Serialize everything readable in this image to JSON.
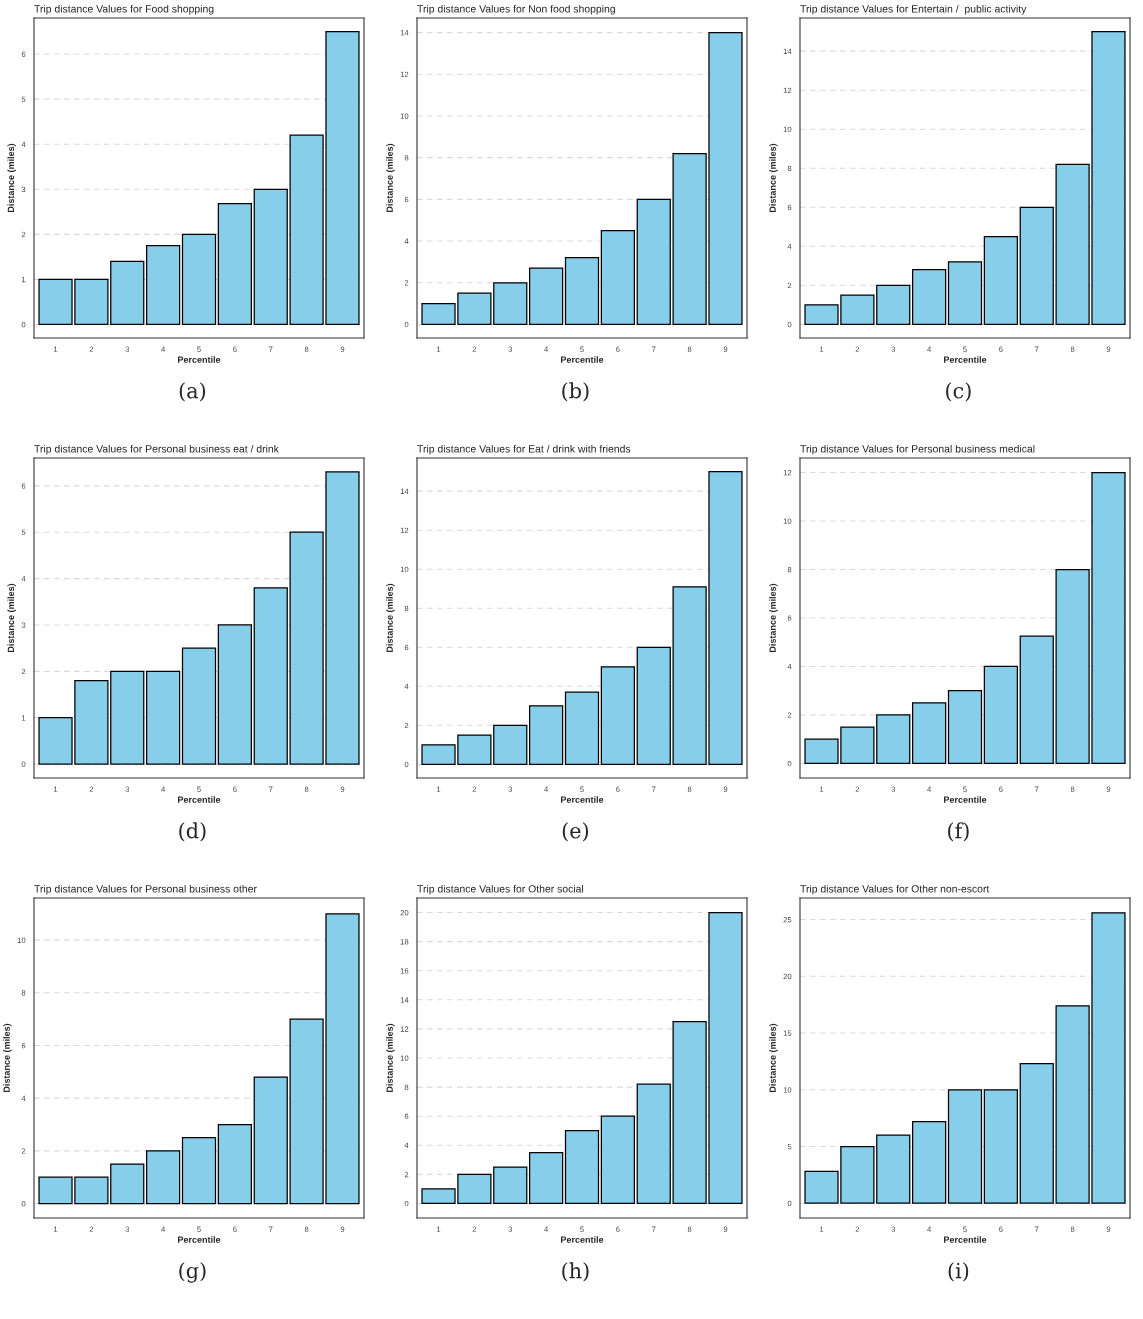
{
  "chart_data": [
    {
      "type": "bar",
      "title": "Trip distance Values for Food shopping",
      "xlabel": "Percentile",
      "ylabel": "Distance (miles)",
      "categories": [
        "1",
        "2",
        "3",
        "4",
        "5",
        "6",
        "7",
        "8",
        "9"
      ],
      "values": [
        1,
        1,
        1.4,
        1.75,
        2,
        2.68,
        3,
        4.2,
        6.5
      ],
      "color": "#87ceeb",
      "ylim": [
        -0.3,
        6.8
      ],
      "yticks": [
        0,
        1,
        2,
        3,
        4,
        5,
        6
      ],
      "grid": "y",
      "annotations": [
        "(a)"
      ]
    },
    {
      "type": "bar",
      "title": "Trip distance Values for Non food shopping",
      "xlabel": "Percentile",
      "ylabel": "Distance (miles)",
      "categories": [
        "1",
        "2",
        "3",
        "4",
        "5",
        "6",
        "7",
        "8",
        "9"
      ],
      "values": [
        1,
        1.5,
        2,
        2.7,
        3.2,
        4.5,
        6,
        8.2,
        14
      ],
      "color": "#87ceeb",
      "ylim": [
        -0.65,
        14.7
      ],
      "yticks": [
        0,
        2,
        4,
        6,
        8,
        10,
        12,
        14
      ],
      "grid": "y",
      "annotations": [
        "(b)"
      ]
    },
    {
      "type": "bar",
      "title": "Trip distance Values for Entertain /  public activity",
      "xlabel": "Percentile",
      "ylabel": "Distance (miles)",
      "categories": [
        "1",
        "2",
        "3",
        "4",
        "5",
        "6",
        "7",
        "8",
        "9"
      ],
      "values": [
        1,
        1.5,
        2,
        2.8,
        3.2,
        4.5,
        6,
        8.2,
        15
      ],
      "color": "#87ceeb",
      "ylim": [
        -0.7,
        15.7
      ],
      "yticks": [
        0,
        2,
        4,
        6,
        8,
        10,
        12,
        14
      ],
      "grid": "y",
      "annotations": [
        "(c)"
      ]
    },
    {
      "type": "bar",
      "title": "Trip distance Values for Personal business eat / drink",
      "xlabel": "Percentile",
      "ylabel": "Distance (miles)",
      "categories": [
        "1",
        "2",
        "3",
        "4",
        "5",
        "6",
        "7",
        "8",
        "9"
      ],
      "values": [
        1,
        1.8,
        2,
        2,
        2.5,
        3,
        3.8,
        5,
        6.3
      ],
      "color": "#87ceeb",
      "ylim": [
        -0.3,
        6.6
      ],
      "yticks": [
        0,
        1,
        2,
        3,
        4,
        5,
        6
      ],
      "grid": "y",
      "annotations": [
        "(d)"
      ]
    },
    {
      "type": "bar",
      "title": "Trip distance Values for Eat / drink with friends",
      "xlabel": "Percentile",
      "ylabel": "Distance (miles)",
      "categories": [
        "1",
        "2",
        "3",
        "4",
        "5",
        "6",
        "7",
        "8",
        "9"
      ],
      "values": [
        1,
        1.5,
        2,
        3,
        3.7,
        5,
        6,
        9.1,
        15
      ],
      "color": "#87ceeb",
      "ylim": [
        -0.7,
        15.7
      ],
      "yticks": [
        0,
        2,
        4,
        6,
        8,
        10,
        12,
        14
      ],
      "grid": "y",
      "annotations": [
        "(e)"
      ]
    },
    {
      "type": "bar",
      "title": "Trip distance Values for Personal business medical",
      "xlabel": "Percentile",
      "ylabel": "Distance (miles)",
      "categories": [
        "1",
        "2",
        "3",
        "4",
        "5",
        "6",
        "7",
        "8",
        "9"
      ],
      "values": [
        1,
        1.5,
        2,
        2.5,
        3,
        4,
        5.25,
        8,
        12
      ],
      "color": "#87ceeb",
      "ylim": [
        -0.6,
        12.6
      ],
      "yticks": [
        0,
        2,
        4,
        6,
        8,
        10,
        12
      ],
      "grid": "y",
      "annotations": [
        "(f)"
      ]
    },
    {
      "type": "bar",
      "title": "Trip distance Values for Personal business other",
      "xlabel": "Percentile",
      "ylabel": "Distance (miles)",
      "categories": [
        "1",
        "2",
        "3",
        "4",
        "5",
        "6",
        "7",
        "8",
        "9"
      ],
      "values": [
        1,
        1,
        1.5,
        2,
        2.5,
        3,
        4.8,
        7,
        11
      ],
      "color": "#87ceeb",
      "ylim": [
        -0.55,
        11.6
      ],
      "yticks": [
        0,
        2,
        4,
        6,
        8,
        10
      ],
      "grid": "y",
      "annotations": [
        "(g)"
      ]
    },
    {
      "type": "bar",
      "title": "Trip distance Values for Other social",
      "xlabel": "Percentile",
      "ylabel": "Distance (miles)",
      "categories": [
        "1",
        "2",
        "3",
        "4",
        "5",
        "6",
        "7",
        "8",
        "9"
      ],
      "values": [
        1,
        2,
        2.5,
        3.5,
        5,
        6,
        8.2,
        12.5,
        20
      ],
      "color": "#87ceeb",
      "ylim": [
        -1,
        21
      ],
      "yticks": [
        0,
        2,
        4,
        6,
        8,
        10,
        12,
        14,
        16,
        18,
        20
      ],
      "grid": "y",
      "annotations": [
        "(h)"
      ]
    },
    {
      "type": "bar",
      "title": "Trip distance Values for Other non-escort",
      "xlabel": "Percentile",
      "ylabel": "Distance (miles)",
      "categories": [
        "1",
        "2",
        "3",
        "4",
        "5",
        "6",
        "7",
        "8",
        "9"
      ],
      "values": [
        2.8,
        5,
        6,
        7.2,
        10,
        10,
        12.3,
        17.4,
        25.6
      ],
      "color": "#87ceeb",
      "ylim": [
        -1.3,
        26.9
      ],
      "yticks": [
        0,
        5,
        10,
        15,
        20,
        25
      ],
      "grid": "y",
      "annotations": [
        "(i)"
      ]
    }
  ]
}
